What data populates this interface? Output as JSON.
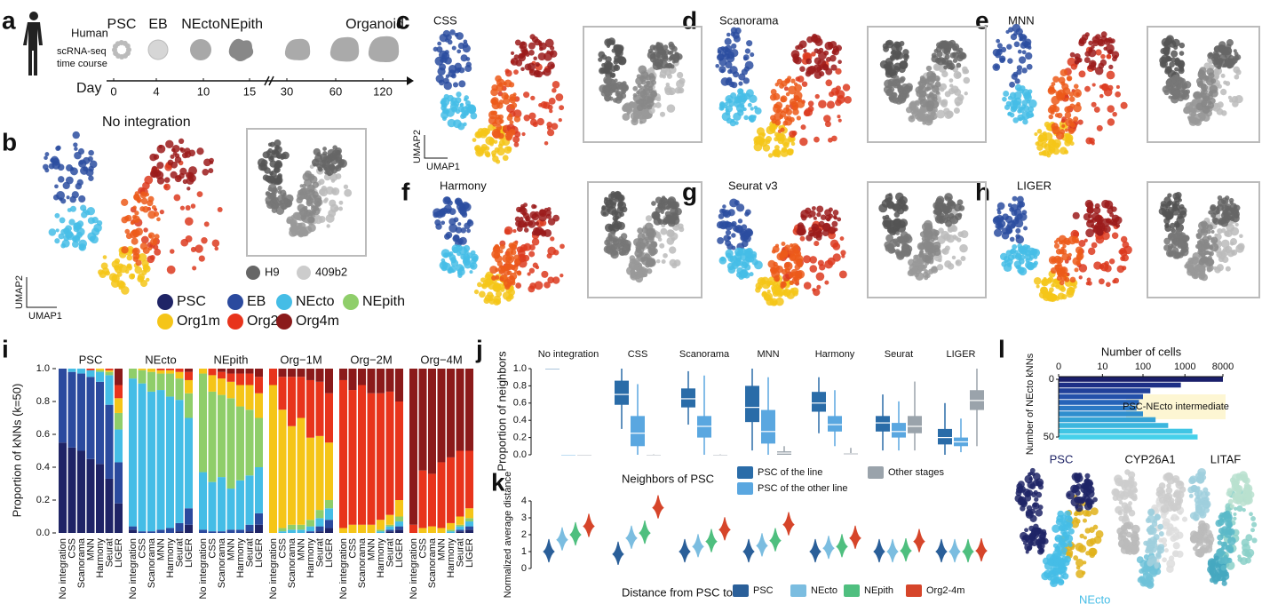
{
  "panel_labels": [
    "a",
    "b",
    "c",
    "d",
    "e",
    "f",
    "g",
    "h",
    "i",
    "j",
    "k",
    "l"
  ],
  "panel_a": {
    "species": "Human",
    "subtitle_lines": [
      "scRNA-seq",
      "time course"
    ],
    "stages": [
      "PSC",
      "EB",
      "NEcto",
      "NEpith",
      "Organoid"
    ],
    "axis_label": "Day",
    "days": [
      0,
      4,
      10,
      15,
      30,
      60,
      120
    ]
  },
  "umap_titles": [
    "No integration",
    "CSS",
    "Scanorama",
    "MNN",
    "Harmony",
    "Seurat v3",
    "LIGER"
  ],
  "umap_axes": {
    "x": "UMAP1",
    "y": "UMAP2"
  },
  "line_legend": [
    {
      "name": "H9",
      "color": "#666666"
    },
    {
      "name": "409b2",
      "color": "#cccccc"
    }
  ],
  "panel_l": {
    "titles": [
      "PSC",
      "CYP26A1",
      "LITAF"
    ],
    "label": "NEcto"
  },
  "chart_data": [
    {
      "type": "stacked-bar",
      "ylabel": "Proportion of kNNs (k=50)",
      "categories": [
        "No integration",
        "CSS",
        "Scanorama",
        "MNN",
        "Harmony",
        "Seurat",
        "LIGER"
      ],
      "ylim": [
        0,
        1
      ],
      "yticks": [
        {
          "value": 0,
          "label": "0.0"
        },
        0.2,
        0.4,
        0.6,
        0.8,
        {
          "value": 1,
          "label": "1.0"
        }
      ],
      "series": [
        {
          "name": "PSC",
          "color": "#1f2466"
        },
        {
          "name": "EB",
          "color": "#2b4a9e"
        },
        {
          "name": "NEcto",
          "color": "#45bde6"
        },
        {
          "name": "NEpith",
          "color": "#8fce6a"
        },
        {
          "name": "Org1m",
          "color": "#f5c518"
        },
        {
          "name": "Org2m",
          "color": "#e8341c"
        },
        {
          "name": "Org4m",
          "color": "#8b1a1a"
        }
      ],
      "panels": [
        {
          "title": "PSC",
          "values": [
            [
              0.55,
              0.52,
              0.5,
              0.45,
              0.42,
              0.33,
              0.18
            ],
            [
              0.45,
              0.46,
              0.47,
              0.5,
              0.5,
              0.45,
              0.25
            ],
            [
              0,
              0.02,
              0.03,
              0.04,
              0.06,
              0.18,
              0.2
            ],
            [
              0,
              0,
              0,
              0,
              0.01,
              0.02,
              0.1
            ],
            [
              0,
              0,
              0,
              0,
              0.01,
              0.01,
              0.09
            ],
            [
              0,
              0,
              0,
              0.01,
              0,
              0.01,
              0.08
            ],
            [
              0,
              0,
              0,
              0,
              0,
              0,
              0.1
            ]
          ]
        },
        {
          "title": "NEcto",
          "values": [
            [
              0.02,
              0,
              0,
              0,
              0,
              0.01,
              0.05
            ],
            [
              0.02,
              0.01,
              0.01,
              0.02,
              0.03,
              0.05,
              0.1
            ],
            [
              0.9,
              0.9,
              0.85,
              0.85,
              0.8,
              0.75,
              0.55
            ],
            [
              0.06,
              0.08,
              0.12,
              0.1,
              0.14,
              0.13,
              0.15
            ],
            [
              0,
              0.01,
              0.02,
              0.02,
              0.02,
              0.04,
              0.08
            ],
            [
              0,
              0,
              0,
              0.01,
              0.01,
              0.02,
              0.05
            ],
            [
              0,
              0,
              0,
              0,
              0,
              0,
              0.02
            ]
          ]
        },
        {
          "title": "NEpith",
          "values": [
            [
              0,
              0,
              0,
              0,
              0,
              0.01,
              0.05
            ],
            [
              0.02,
              0.01,
              0.01,
              0.02,
              0.02,
              0.04,
              0.07
            ],
            [
              0.35,
              0.3,
              0.33,
              0.25,
              0.3,
              0.3,
              0.28
            ],
            [
              0.6,
              0.55,
              0.5,
              0.55,
              0.45,
              0.4,
              0.3
            ],
            [
              0.03,
              0.1,
              0.1,
              0.1,
              0.13,
              0.15,
              0.15
            ],
            [
              0,
              0.04,
              0.04,
              0.05,
              0.07,
              0.07,
              0.1
            ],
            [
              0,
              0,
              0.02,
              0.03,
              0.03,
              0.03,
              0.05
            ]
          ]
        },
        {
          "title": "Org−1M",
          "values": [
            [
              0,
              0,
              0,
              0,
              0,
              0.01,
              0.03
            ],
            [
              0,
              0,
              0,
              0,
              0.01,
              0.03,
              0.05
            ],
            [
              0,
              0.01,
              0.02,
              0.02,
              0.03,
              0.05,
              0.07
            ],
            [
              0,
              0.02,
              0.03,
              0.03,
              0.04,
              0.05,
              0.05
            ],
            [
              0.9,
              0.72,
              0.6,
              0.65,
              0.5,
              0.45,
              0.35
            ],
            [
              0.1,
              0.2,
              0.3,
              0.25,
              0.35,
              0.33,
              0.3
            ],
            [
              0,
              0.05,
              0.05,
              0.05,
              0.07,
              0.08,
              0.15
            ]
          ]
        },
        {
          "title": "Org−2M",
          "values": [
            [
              0,
              0,
              0,
              0,
              0,
              0.01,
              0.02
            ],
            [
              0,
              0,
              0,
              0,
              0,
              0.01,
              0.02
            ],
            [
              0,
              0,
              0,
              0,
              0.01,
              0.02,
              0.03
            ],
            [
              0,
              0,
              0,
              0,
              0.01,
              0.01,
              0.03
            ],
            [
              0.03,
              0.05,
              0.05,
              0.05,
              0.06,
              0.06,
              0.1
            ],
            [
              0.9,
              0.82,
              0.85,
              0.8,
              0.77,
              0.75,
              0.6
            ],
            [
              0.07,
              0.13,
              0.1,
              0.15,
              0.15,
              0.14,
              0.2
            ]
          ]
        },
        {
          "title": "Org−4M",
          "values": [
            [
              0,
              0,
              0,
              0,
              0,
              0.01,
              0.02
            ],
            [
              0,
              0,
              0,
              0,
              0,
              0.01,
              0.02
            ],
            [
              0,
              0,
              0,
              0,
              0.01,
              0.02,
              0.03
            ],
            [
              0,
              0,
              0,
              0,
              0.01,
              0.01,
              0.02
            ],
            [
              0,
              0.03,
              0.04,
              0.03,
              0.04,
              0.05,
              0.06
            ],
            [
              0.05,
              0.35,
              0.32,
              0.4,
              0.4,
              0.4,
              0.35
            ],
            [
              0.95,
              0.62,
              0.64,
              0.57,
              0.54,
              0.5,
              0.5
            ]
          ]
        }
      ]
    },
    {
      "type": "box",
      "ylabel": "Proportion of neighbors",
      "legend_title": "Neighbors of PSC",
      "categories": [
        "No integration",
        "CSS",
        "Scanorama",
        "MNN",
        "Harmony",
        "Seurat",
        "LIGER"
      ],
      "ylim": [
        0,
        1
      ],
      "yticks": [
        {
          "value": 0,
          "label": "0.0"
        },
        0.2,
        0.4,
        0.6,
        0.8,
        {
          "value": 1,
          "label": "1.0"
        }
      ],
      "series": [
        {
          "name": "PSC of the line",
          "color": "#2a6ca8",
          "values": [
            [
              1,
              1,
              1,
              1,
              1
            ],
            [
              0.3,
              0.58,
              0.7,
              0.86,
              1
            ],
            [
              0.35,
              0.55,
              0.65,
              0.77,
              0.97
            ],
            [
              0.05,
              0.38,
              0.55,
              0.8,
              1
            ],
            [
              0.25,
              0.5,
              0.6,
              0.73,
              0.9
            ],
            [
              0.05,
              0.27,
              0.37,
              0.45,
              0.7
            ],
            [
              0,
              0.12,
              0.2,
              0.3,
              0.6
            ]
          ]
        },
        {
          "name": "PSC of the other line",
          "color": "#5aa7e0",
          "values": [
            [
              0,
              0,
              0,
              0,
              0
            ],
            [
              0,
              0.1,
              0.25,
              0.45,
              0.82
            ],
            [
              0,
              0.2,
              0.33,
              0.45,
              0.92
            ],
            [
              0,
              0.13,
              0.27,
              0.52,
              0.9
            ],
            [
              0.1,
              0.27,
              0.35,
              0.45,
              0.75
            ],
            [
              0.05,
              0.2,
              0.27,
              0.37,
              0.62
            ],
            [
              0.03,
              0.1,
              0.15,
              0.2,
              0.42
            ]
          ]
        },
        {
          "name": "Other stages",
          "color": "#9aa3ab",
          "values": [
            [
              0,
              0,
              0,
              0,
              0
            ],
            [
              0,
              0,
              0,
              0,
              0.01
            ],
            [
              0,
              0,
              0,
              0,
              0.01
            ],
            [
              0,
              0,
              0.02,
              0.04,
              0.1
            ],
            [
              0,
              0,
              0.01,
              0.02,
              0.08
            ],
            [
              0.05,
              0.25,
              0.33,
              0.45,
              0.85
            ],
            [
              0.1,
              0.52,
              0.63,
              0.75,
              1
            ]
          ]
        }
      ]
    },
    {
      "type": "violin",
      "ylabel": "Normalized average distance",
      "legend_title": "Distance from PSC to",
      "ylim": [
        0,
        4
      ],
      "yticks": [
        0,
        1,
        2,
        3,
        4
      ],
      "series": [
        {
          "name": "PSC",
          "color": "#2a5f99",
          "values": [
            1,
            0.85,
            1,
            1,
            1,
            1,
            1
          ]
        },
        {
          "name": "NEcto",
          "color": "#7bbde0",
          "values": [
            1.7,
            1.8,
            1.3,
            1.35,
            1.2,
            1,
            1
          ]
        },
        {
          "name": "NEpith",
          "color": "#4fbf7f",
          "values": [
            2,
            2.1,
            1.6,
            1.65,
            1.3,
            1.05,
            1
          ]
        },
        {
          "name": "Org2-4m",
          "color": "#d6452a",
          "values": [
            2.5,
            3.6,
            2.3,
            2.6,
            1.8,
            1.6,
            1.05
          ]
        }
      ]
    },
    {
      "type": "hbar",
      "title": "Number of cells",
      "ylabel": "Number of NEcto kNNs",
      "annotation": "PSC-NEcto intermediate",
      "xscale": "symlog",
      "xlim": [
        0,
        8000
      ],
      "xticks": [
        0,
        10,
        100,
        1000,
        8000
      ],
      "ylim": [
        0,
        50
      ],
      "yticks": [
        0,
        50
      ],
      "y": [
        0,
        5,
        10,
        15,
        20,
        25,
        30,
        35,
        40,
        45,
        50
      ],
      "values": [
        8000,
        800,
        150,
        100,
        80,
        70,
        100,
        200,
        400,
        1500,
        2000
      ],
      "colors": [
        "#1a1f6b",
        "#1d2f86",
        "#20409a",
        "#2350aa",
        "#2563b8",
        "#2a78c4",
        "#2f8ece",
        "#35a3d6",
        "#3bb6de",
        "#40c5e4",
        "#45d0ea"
      ]
    }
  ]
}
